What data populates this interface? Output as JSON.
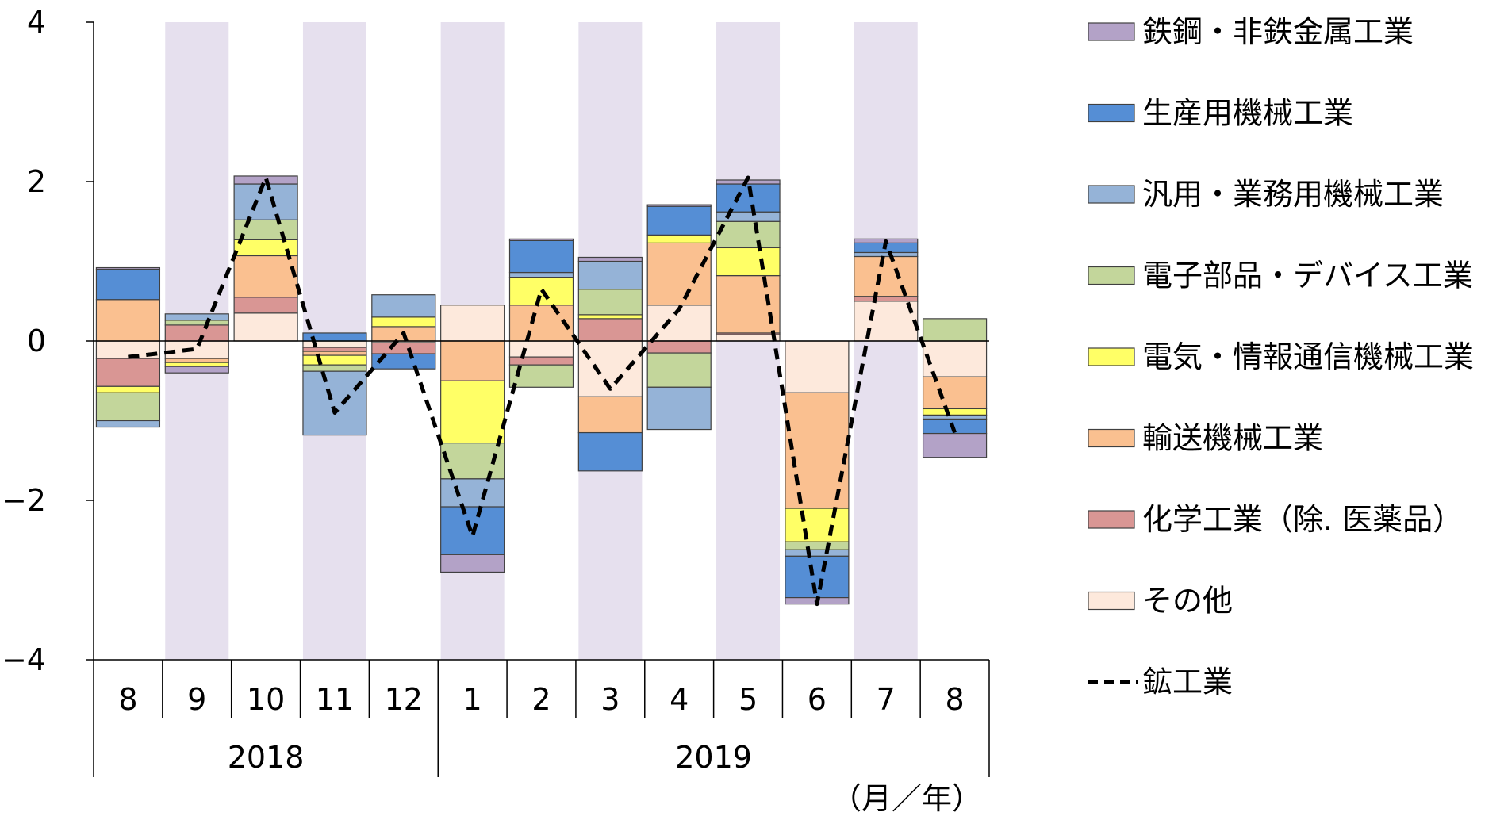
{
  "chart_data": {
    "type": "bar",
    "stacked": true,
    "title": "",
    "xlabel": "",
    "ylabel": "",
    "ylim": [
      -4,
      4
    ],
    "yticks": [
      "4",
      "2",
      "0",
      "−2",
      "−4"
    ],
    "ytick_values": [
      4,
      2,
      0,
      -2,
      -4
    ],
    "categories": [
      "8",
      "9",
      "10",
      "11",
      "12",
      "1",
      "2",
      "3",
      "4",
      "5",
      "6",
      "7",
      "8"
    ],
    "years": [
      {
        "label": "2018",
        "from_index": 0,
        "to_index": 4
      },
      {
        "label": "2019",
        "from_index": 5,
        "to_index": 12
      }
    ],
    "x_unit_label": "（月／年）",
    "shaded_categories": [
      1,
      3,
      5,
      7,
      9,
      11
    ],
    "shade_color": "#e6e0ee",
    "series": [
      {
        "name": "その他",
        "color": "#fde9dc",
        "values": [
          -0.22,
          -0.22,
          0.35,
          -0.08,
          -0.02,
          0.45,
          -0.2,
          -0.7,
          0.45,
          0.08,
          -0.65,
          0.5,
          -0.45
        ]
      },
      {
        "name": "化学工業（除. 医薬品）",
        "color": "#d99694",
        "values": [
          -0.35,
          0.2,
          0.2,
          -0.05,
          -0.14,
          0.0,
          -0.1,
          0.28,
          -0.15,
          0.02,
          0.0,
          0.06,
          0.0
        ]
      },
      {
        "name": "輸送機械工業",
        "color": "#fac090",
        "values": [
          0.52,
          -0.05,
          0.52,
          -0.05,
          0.18,
          -0.5,
          0.45,
          -0.45,
          0.78,
          0.72,
          -1.45,
          0.5,
          -0.4
        ]
      },
      {
        "name": "電気・情報通信機械工業",
        "color": "#ffff66",
        "values": [
          -0.08,
          -0.05,
          0.2,
          -0.12,
          0.12,
          -0.78,
          0.35,
          0.05,
          0.1,
          0.35,
          -0.42,
          0.0,
          -0.08
        ]
      },
      {
        "name": "電子部品・デバイス工業",
        "color": "#c3d69b",
        "values": [
          -0.35,
          0.06,
          0.25,
          -0.08,
          0.0,
          -0.45,
          -0.28,
          0.32,
          -0.43,
          0.33,
          -0.1,
          0.0,
          0.28
        ]
      },
      {
        "name": "汎用・業務用機械工業",
        "color": "#95b3d7",
        "values": [
          -0.08,
          0.08,
          0.45,
          -0.8,
          0.28,
          -0.35,
          0.06,
          0.35,
          -0.53,
          0.12,
          -0.08,
          0.05,
          -0.05
        ]
      },
      {
        "name": "生産用機械工業",
        "color": "#558ed5",
        "values": [
          0.38,
          0.0,
          0.0,
          0.1,
          -0.19,
          -0.6,
          0.4,
          -0.48,
          0.36,
          0.35,
          -0.52,
          0.12,
          -0.18
        ]
      },
      {
        "name": "鉄鋼・非鉄金属工業",
        "color": "#b3a2c7",
        "values": [
          0.02,
          -0.08,
          0.1,
          0.0,
          0.0,
          -0.22,
          0.02,
          0.05,
          0.02,
          0.05,
          -0.08,
          0.05,
          -0.3
        ]
      }
    ],
    "line": {
      "name": "鉱工業",
      "color": "#000000",
      "dashed": true,
      "values": [
        -0.2,
        -0.1,
        2.05,
        -0.9,
        0.1,
        -2.45,
        0.65,
        -0.6,
        0.4,
        2.05,
        -3.3,
        1.25,
        -1.15
      ]
    },
    "legend": {
      "placement": "right",
      "order": [
        "鉄鋼・非鉄金属工業",
        "生産用機械工業",
        "汎用・業務用機械工業",
        "電子部品・デバイス工業",
        "電気・情報通信機械工業",
        "輸送機械工業",
        "化学工業（除. 医薬品）",
        "その他",
        "鉱工業"
      ]
    },
    "grid": false
  }
}
